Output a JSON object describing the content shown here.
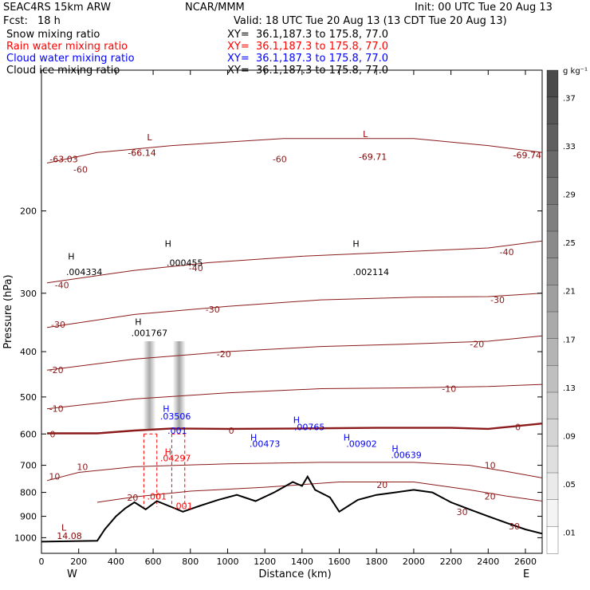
{
  "header": {
    "model_title": "SEAC4RS 15km ARW",
    "center_title": "NCAR/MMM",
    "init_text": "Init: 00 UTC Tue 20 Aug 13",
    "fcst_label": "Fcst:",
    "fcst_value": "18 h",
    "valid_text": "Valid: 18 UTC Tue 20 Aug 13 (13 CDT Tue 20 Aug 13)"
  },
  "fields": [
    {
      "name": "Snow mixing ratio",
      "xy": "XY=  36.1,187.3 to 175.8, 77.0",
      "color": "#000000"
    },
    {
      "name": "Rain water mixing ratio",
      "xy": "XY=  36.1,187.3 to 175.8, 77.0",
      "color": "#ff0000"
    },
    {
      "name": "Cloud water mixing ratio",
      "xy": "XY=  36.1,187.3 to 175.8, 77.0",
      "color": "#0000ff"
    },
    {
      "name": "Cloud ice mixing ratio",
      "xy": "XY=  36.1,187.3 to 175.8, 77.0",
      "color": "#000000"
    }
  ],
  "colorbar": {
    "unit_label": "g kg⁻¹",
    "ticks": [
      ".37",
      ".33",
      ".29",
      ".25",
      ".21",
      ".17",
      ".13",
      ".09",
      ".05",
      ".01"
    ],
    "shade_start": "#ffffff",
    "shade_end": "#4a4a4a"
  },
  "chart_data": {
    "type": "cross-section",
    "xlabel": "Distance (km)",
    "ylabel": "Pressure (hPa)",
    "xlim": [
      0,
      2690
    ],
    "ylim": [
      1080,
      100
    ],
    "y_log_scale": true,
    "x_ticks": [
      "0",
      "200",
      "400",
      "600",
      "800",
      "1000",
      "1200",
      "1400",
      "1600",
      "1800",
      "2000",
      "2200",
      "2400",
      "2600"
    ],
    "y_ticks": [
      "200",
      "300",
      "400",
      "500",
      "600",
      "700",
      "800",
      "900",
      "1000"
    ],
    "endpoint_labels": {
      "west": "W",
      "east": "E"
    },
    "temperature_contours": [
      {
        "label": "-60",
        "points": [
          [
            30,
            158
          ],
          [
            300,
            150
          ],
          [
            700,
            145
          ],
          [
            1300,
            140
          ],
          [
            2000,
            140
          ],
          [
            2400,
            145
          ],
          [
            2690,
            150
          ]
        ]
      },
      {
        "label": "-40",
        "points": [
          [
            30,
            285
          ],
          [
            500,
            268
          ],
          [
            900,
            258
          ],
          [
            1400,
            250
          ],
          [
            1900,
            245
          ],
          [
            2400,
            240
          ],
          [
            2690,
            232
          ]
        ]
      },
      {
        "label": "-30",
        "points": [
          [
            30,
            355
          ],
          [
            500,
            333
          ],
          [
            1000,
            320
          ],
          [
            1500,
            310
          ],
          [
            2000,
            306
          ],
          [
            2400,
            305
          ],
          [
            2690,
            300
          ]
        ]
      },
      {
        "label": "-20",
        "points": [
          [
            30,
            438
          ],
          [
            500,
            415
          ],
          [
            1000,
            400
          ],
          [
            1500,
            390
          ],
          [
            2000,
            385
          ],
          [
            2400,
            380
          ],
          [
            2690,
            370
          ]
        ]
      },
      {
        "label": "-10",
        "points": [
          [
            30,
            530
          ],
          [
            500,
            505
          ],
          [
            1000,
            490
          ],
          [
            1500,
            480
          ],
          [
            2000,
            478
          ],
          [
            2400,
            475
          ],
          [
            2690,
            470
          ]
        ]
      },
      {
        "label": "0",
        "points": [
          [
            30,
            598
          ],
          [
            300,
            598
          ],
          [
            500,
            590
          ],
          [
            700,
            584
          ],
          [
            1000,
            585
          ],
          [
            1400,
            584
          ],
          [
            1800,
            582
          ],
          [
            2200,
            582
          ],
          [
            2400,
            585
          ],
          [
            2690,
            570
          ]
        ]
      },
      {
        "label": "10",
        "points": [
          [
            30,
            755
          ],
          [
            200,
            725
          ],
          [
            500,
            705
          ],
          [
            1000,
            695
          ],
          [
            1500,
            690
          ],
          [
            2000,
            690
          ],
          [
            2300,
            700
          ],
          [
            2500,
            722
          ],
          [
            2690,
            745
          ]
        ]
      },
      {
        "label": "20",
        "points": [
          [
            300,
            840
          ],
          [
            500,
            818
          ],
          [
            800,
            795
          ],
          [
            1200,
            780
          ],
          [
            1600,
            760
          ],
          [
            2000,
            760
          ],
          [
            2300,
            790
          ],
          [
            2500,
            815
          ],
          [
            2690,
            835
          ]
        ]
      }
    ],
    "terrain": {
      "points": [
        [
          0,
          1020
        ],
        [
          300,
          1015
        ],
        [
          340,
          960
        ],
        [
          400,
          900
        ],
        [
          450,
          865
        ],
        [
          500,
          840
        ],
        [
          560,
          870
        ],
        [
          620,
          835
        ],
        [
          700,
          860
        ],
        [
          760,
          880
        ],
        [
          850,
          855
        ],
        [
          950,
          830
        ],
        [
          1050,
          810
        ],
        [
          1150,
          835
        ],
        [
          1250,
          800
        ],
        [
          1300,
          780
        ],
        [
          1350,
          760
        ],
        [
          1400,
          775
        ],
        [
          1430,
          740
        ],
        [
          1470,
          790
        ],
        [
          1550,
          820
        ],
        [
          1600,
          880
        ],
        [
          1700,
          830
        ],
        [
          1800,
          810
        ],
        [
          1900,
          800
        ],
        [
          2000,
          790
        ],
        [
          2100,
          800
        ],
        [
          2200,
          840
        ],
        [
          2300,
          870
        ],
        [
          2400,
          900
        ],
        [
          2500,
          930
        ],
        [
          2600,
          960
        ],
        [
          2690,
          980
        ]
      ]
    },
    "extrema_labels": [
      {
        "text": "-63.03",
        "x": 120,
        "p": 155,
        "color": "#8b0000"
      },
      {
        "text": "-66.14",
        "x": 540,
        "p": 150,
        "color": "#8b0000"
      },
      {
        "text": "-69.71",
        "x": 1780,
        "p": 153,
        "color": "#8b0000"
      },
      {
        "text": "-69.74",
        "x": 2610,
        "p": 152,
        "color": "#8b0000"
      },
      {
        "text": "L",
        "x": 580,
        "p": 139,
        "color": "#8b0000"
      },
      {
        "text": "L",
        "x": 1740,
        "p": 137,
        "color": "#8b0000"
      },
      {
        "text": "L",
        "x": 120,
        "p": 950,
        "color": "#8b0000"
      },
      {
        "text": "14.08",
        "x": 150,
        "p": 990,
        "color": "#8b0000"
      },
      {
        "text": "H",
        "x": 160,
        "p": 250,
        "color": "#000000"
      },
      {
        "text": ".004334",
        "x": 230,
        "p": 270,
        "color": "#000000"
      },
      {
        "text": "H",
        "x": 680,
        "p": 235,
        "color": "#000000"
      },
      {
        "text": ".000455",
        "x": 770,
        "p": 258,
        "color": "#000000"
      },
      {
        "text": "H",
        "x": 1690,
        "p": 235,
        "color": "#000000"
      },
      {
        "text": ".002114",
        "x": 1770,
        "p": 270,
        "color": "#000000"
      },
      {
        "text": "H",
        "x": 520,
        "p": 345,
        "color": "#000000"
      },
      {
        "text": ".001767",
        "x": 580,
        "p": 365,
        "color": "#000000"
      },
      {
        "text": "H",
        "x": 670,
        "p": 530,
        "color": "#0000ff"
      },
      {
        "text": ".03506",
        "x": 720,
        "p": 550,
        "color": "#0000ff"
      },
      {
        "text": ".001",
        "x": 730,
        "p": 590,
        "color": "#0000ff"
      },
      {
        "text": "H",
        "x": 1370,
        "p": 560,
        "color": "#0000ff"
      },
      {
        "text": ".00765",
        "x": 1440,
        "p": 580,
        "color": "#0000ff"
      },
      {
        "text": "H",
        "x": 1140,
        "p": 610,
        "color": "#0000ff"
      },
      {
        "text": ".00473",
        "x": 1200,
        "p": 630,
        "color": "#0000ff"
      },
      {
        "text": "H",
        "x": 1640,
        "p": 610,
        "color": "#0000ff"
      },
      {
        "text": ".00902",
        "x": 1720,
        "p": 630,
        "color": "#0000ff"
      },
      {
        "text": "H",
        "x": 1900,
        "p": 645,
        "color": "#0000ff"
      },
      {
        "text": ".00639",
        "x": 1960,
        "p": 665,
        "color": "#0000ff"
      },
      {
        "text": "H",
        "x": 680,
        "p": 655,
        "color": "#ff0000"
      },
      {
        "text": ".04297",
        "x": 720,
        "p": 675,
        "color": "#ff0000"
      },
      {
        "text": ".001",
        "x": 620,
        "p": 815,
        "color": "#ff0000"
      },
      {
        "text": ".001",
        "x": 760,
        "p": 855,
        "color": "#ff0000"
      }
    ],
    "contour_labels": [
      {
        "text": "-60",
        "x": 210,
        "p": 163
      },
      {
        "text": "-60",
        "x": 1280,
        "p": 155
      },
      {
        "text": "-40",
        "x": 830,
        "p": 265
      },
      {
        "text": "-40",
        "x": 2500,
        "p": 245
      },
      {
        "text": "-40",
        "x": 110,
        "p": 288
      },
      {
        "text": "-30",
        "x": 90,
        "p": 350
      },
      {
        "text": "-30",
        "x": 920,
        "p": 325
      },
      {
        "text": "-30",
        "x": 2450,
        "p": 310
      },
      {
        "text": "-20",
        "x": 80,
        "p": 438
      },
      {
        "text": "-20",
        "x": 980,
        "p": 405
      },
      {
        "text": "-20",
        "x": 2340,
        "p": 385
      },
      {
        "text": "-10",
        "x": 80,
        "p": 530
      },
      {
        "text": "-10",
        "x": 2190,
        "p": 480
      },
      {
        "text": "0",
        "x": 60,
        "p": 600
      },
      {
        "text": "0",
        "x": 1020,
        "p": 590
      },
      {
        "text": "0",
        "x": 2560,
        "p": 580
      },
      {
        "text": "10",
        "x": 70,
        "p": 740
      },
      {
        "text": "10",
        "x": 220,
        "p": 705
      },
      {
        "text": "10",
        "x": 2410,
        "p": 700
      },
      {
        "text": "20",
        "x": 1830,
        "p": 770
      },
      {
        "text": "20",
        "x": 490,
        "p": 820
      },
      {
        "text": "20",
        "x": 2410,
        "p": 815
      },
      {
        "text": "30",
        "x": 2260,
        "p": 880
      },
      {
        "text": "30",
        "x": 2540,
        "p": 945
      }
    ],
    "snow_shading": [
      {
        "x": 580,
        "p_top": 380,
        "p_bottom": 590,
        "intensity": 0.7
      },
      {
        "x": 740,
        "p_top": 380,
        "p_bottom": 590,
        "intensity": 0.75
      }
    ],
    "rain_dashed_columns": [
      {
        "x_left": 550,
        "x_right": 620,
        "p_top": 600,
        "p_bottom": 860
      },
      {
        "x_left": 700,
        "x_right": 770,
        "p_top": 600,
        "p_bottom": 860
      }
    ]
  }
}
